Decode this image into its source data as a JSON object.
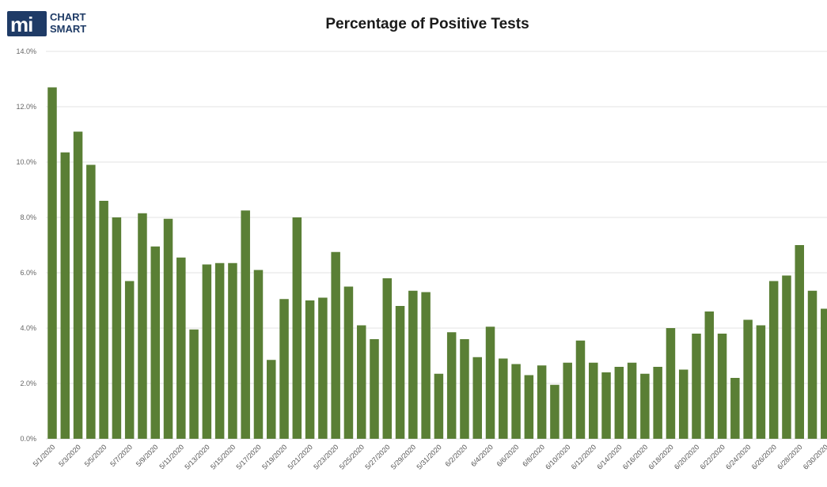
{
  "logo": {
    "mark": "mi",
    "line1": "CHART",
    "line2": "SMART"
  },
  "colors": {
    "bar": "#5a7f35",
    "grid": "#e3e3e3",
    "logo": "#1f3b66"
  },
  "chart_data": {
    "type": "bar",
    "title": "Percentage of Positive Tests",
    "xlabel": "",
    "ylabel": "",
    "ylim": [
      0,
      14
    ],
    "yticks": [
      "0.0%",
      "2.0%",
      "4.0%",
      "6.0%",
      "8.0%",
      "10.0%",
      "12.0%",
      "14.0%"
    ],
    "grid": true,
    "categories": [
      "5/1/2020",
      "5/2/2020",
      "5/3/2020",
      "5/4/2020",
      "5/5/2020",
      "5/6/2020",
      "5/7/2020",
      "5/8/2020",
      "5/9/2020",
      "5/10/2020",
      "5/11/2020",
      "5/12/2020",
      "5/13/2020",
      "5/14/2020",
      "5/15/2020",
      "5/16/2020",
      "5/17/2020",
      "5/18/2020",
      "5/19/2020",
      "5/20/2020",
      "5/21/2020",
      "5/22/2020",
      "5/23/2020",
      "5/24/2020",
      "5/25/2020",
      "5/26/2020",
      "5/27/2020",
      "5/28/2020",
      "5/29/2020",
      "5/30/2020",
      "5/31/2020",
      "6/1/2020",
      "6/2/2020",
      "6/3/2020",
      "6/4/2020",
      "6/5/2020",
      "6/6/2020",
      "6/7/2020",
      "6/8/2020",
      "6/9/2020",
      "6/10/2020",
      "6/11/2020",
      "6/12/2020",
      "6/13/2020",
      "6/14/2020",
      "6/15/2020",
      "6/16/2020",
      "6/17/2020",
      "6/18/2020",
      "6/19/2020",
      "6/20/2020",
      "6/21/2020",
      "6/22/2020",
      "6/23/2020",
      "6/24/2020",
      "6/25/2020",
      "6/26/2020",
      "6/27/2020",
      "6/28/2020",
      "6/29/2020",
      "6/30/2020"
    ],
    "xtick_labels": [
      "5/1/2020",
      "5/3/2020",
      "5/5/2020",
      "5/7/2020",
      "5/9/2020",
      "5/11/2020",
      "5/13/2020",
      "5/15/2020",
      "5/17/2020",
      "5/19/2020",
      "5/21/2020",
      "5/23/2020",
      "5/25/2020",
      "5/27/2020",
      "5/29/2020",
      "5/31/2020",
      "6/2/2020",
      "6/4/2020",
      "6/6/2020",
      "6/8/2020",
      "6/10/2020",
      "6/12/2020",
      "6/14/2020",
      "6/16/2020",
      "6/18/2020",
      "6/20/2020",
      "6/22/2020",
      "6/24/2020",
      "6/26/2020",
      "6/28/2020",
      "6/30/2020"
    ],
    "values": [
      12.7,
      10.35,
      11.1,
      9.9,
      8.6,
      8.0,
      5.7,
      8.15,
      6.95,
      7.95,
      6.55,
      3.95,
      6.3,
      6.35,
      6.35,
      8.25,
      6.1,
      2.85,
      5.05,
      8.0,
      5.0,
      5.1,
      6.75,
      5.5,
      4.1,
      3.6,
      5.8,
      4.8,
      5.35,
      5.3,
      2.35,
      3.85,
      3.6,
      2.95,
      4.05,
      2.9,
      2.7,
      2.3,
      2.65,
      1.95,
      2.75,
      3.55,
      2.75,
      2.4,
      2.6,
      2.75,
      2.35,
      2.6,
      4.0,
      2.5,
      3.8,
      4.6,
      3.8,
      2.2,
      4.3,
      4.1,
      5.7,
      5.9,
      7.0,
      5.35,
      4.7
    ]
  }
}
